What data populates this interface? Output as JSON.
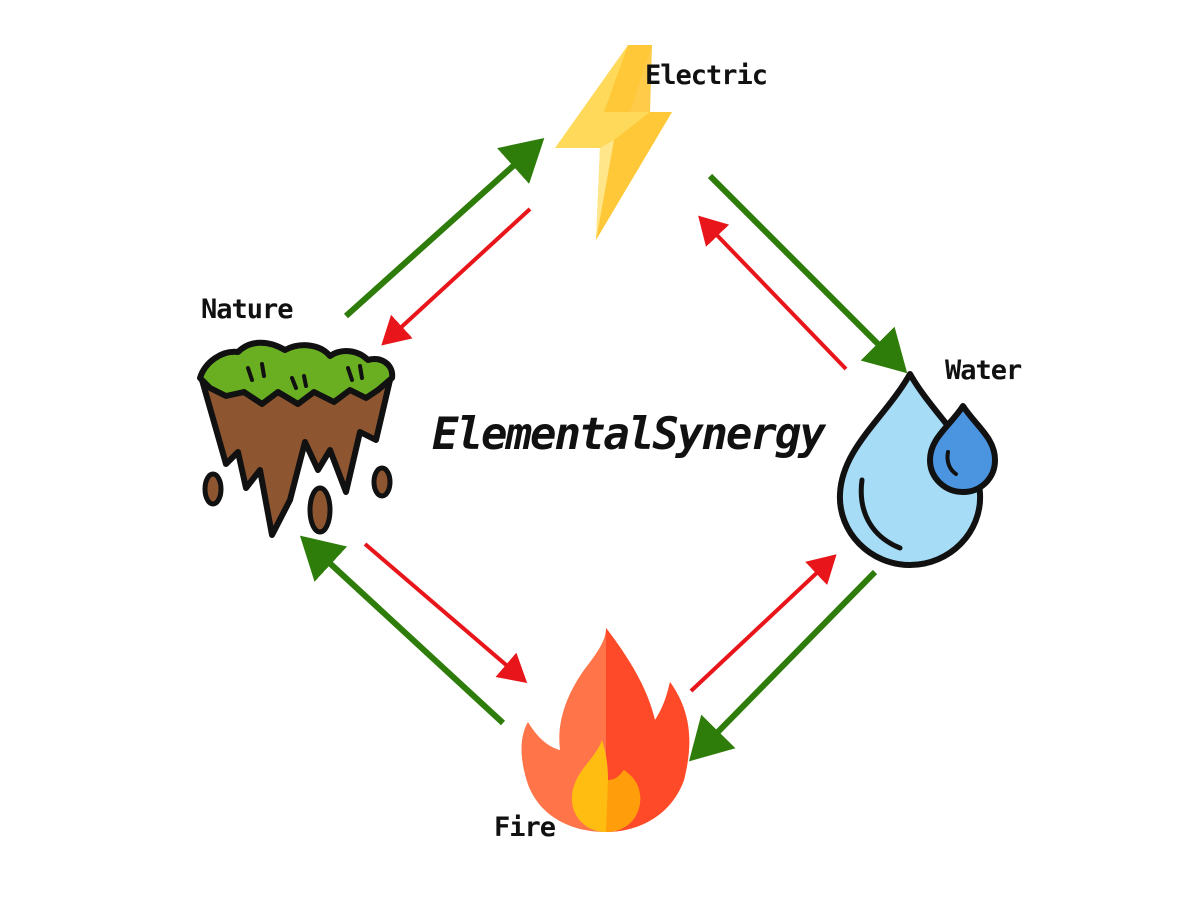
{
  "title": "ElementalSynergy",
  "colors": {
    "strong_arrow": "#2e7d0a",
    "weak_arrow": "#e8161a",
    "outline": "#111111"
  },
  "nodes": [
    {
      "id": "electric",
      "label": "Electric",
      "icon": "lightning-bolt-icon"
    },
    {
      "id": "water",
      "label": "Water",
      "icon": "water-drop-icon"
    },
    {
      "id": "fire",
      "label": "Fire",
      "icon": "fire-flame-icon"
    },
    {
      "id": "nature",
      "label": "Nature",
      "icon": "floating-island-icon"
    }
  ],
  "links": [
    {
      "from": "nature",
      "to": "electric",
      "kind": "strong"
    },
    {
      "from": "electric",
      "to": "nature",
      "kind": "weak"
    },
    {
      "from": "electric",
      "to": "water",
      "kind": "strong"
    },
    {
      "from": "water",
      "to": "electric",
      "kind": "weak"
    },
    {
      "from": "water",
      "to": "fire",
      "kind": "strong"
    },
    {
      "from": "fire",
      "to": "water",
      "kind": "weak"
    },
    {
      "from": "fire",
      "to": "nature",
      "kind": "strong"
    },
    {
      "from": "nature",
      "to": "fire",
      "kind": "weak"
    }
  ]
}
